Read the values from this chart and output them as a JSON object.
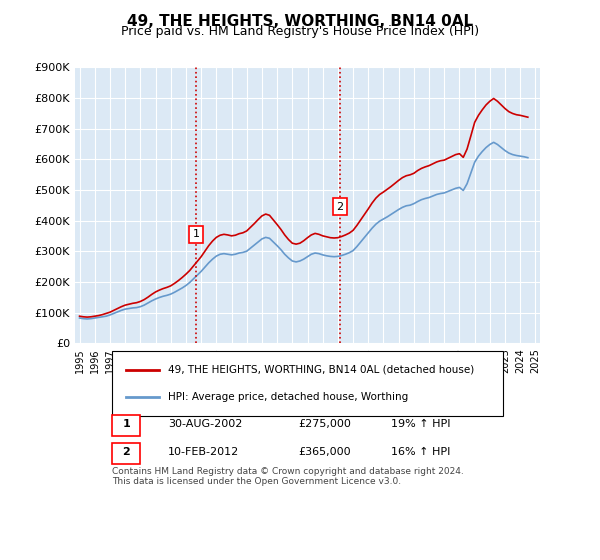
{
  "title": "49, THE HEIGHTS, WORTHING, BN14 0AL",
  "subtitle": "Price paid vs. HM Land Registry's House Price Index (HPI)",
  "bg_color": "#dce9f5",
  "plot_bg_color": "#dce9f5",
  "ylim": [
    0,
    900000
  ],
  "yticks": [
    0,
    100000,
    200000,
    300000,
    400000,
    500000,
    600000,
    700000,
    800000,
    900000
  ],
  "ytick_labels": [
    "£0",
    "£100K",
    "£200K",
    "£300K",
    "£400K",
    "£500K",
    "£600K",
    "£700K",
    "£800K",
    "£900K"
  ],
  "x_start_year": 1995,
  "x_end_year": 2025,
  "sale1_year": 2002.67,
  "sale1_price": 275000,
  "sale1_label": "1",
  "sale1_date": "30-AUG-2002",
  "sale1_pct": "19% ↑ HPI",
  "sale2_year": 2012.12,
  "sale2_price": 365000,
  "sale2_label": "2",
  "sale2_date": "10-FEB-2012",
  "sale2_pct": "16% ↑ HPI",
  "red_line_color": "#cc0000",
  "blue_line_color": "#6699cc",
  "vline_color": "#cc0000",
  "legend_label1": "49, THE HEIGHTS, WORTHING, BN14 0AL (detached house)",
  "legend_label2": "HPI: Average price, detached house, Worthing",
  "footer": "Contains HM Land Registry data © Crown copyright and database right 2024.\nThis data is licensed under the Open Government Licence v3.0.",
  "hpi_data_x": [
    1995.0,
    1995.25,
    1995.5,
    1995.75,
    1996.0,
    1996.25,
    1996.5,
    1996.75,
    1997.0,
    1997.25,
    1997.5,
    1997.75,
    1998.0,
    1998.25,
    1998.5,
    1998.75,
    1999.0,
    1999.25,
    1999.5,
    1999.75,
    2000.0,
    2000.25,
    2000.5,
    2000.75,
    2001.0,
    2001.25,
    2001.5,
    2001.75,
    2002.0,
    2002.25,
    2002.5,
    2002.75,
    2003.0,
    2003.25,
    2003.5,
    2003.75,
    2004.0,
    2004.25,
    2004.5,
    2004.75,
    2005.0,
    2005.25,
    2005.5,
    2005.75,
    2006.0,
    2006.25,
    2006.5,
    2006.75,
    2007.0,
    2007.25,
    2007.5,
    2007.75,
    2008.0,
    2008.25,
    2008.5,
    2008.75,
    2009.0,
    2009.25,
    2009.5,
    2009.75,
    2010.0,
    2010.25,
    2010.5,
    2010.75,
    2011.0,
    2011.25,
    2011.5,
    2011.75,
    2012.0,
    2012.25,
    2012.5,
    2012.75,
    2013.0,
    2013.25,
    2013.5,
    2013.75,
    2014.0,
    2014.25,
    2014.5,
    2014.75,
    2015.0,
    2015.25,
    2015.5,
    2015.75,
    2016.0,
    2016.25,
    2016.5,
    2016.75,
    2017.0,
    2017.25,
    2017.5,
    2017.75,
    2018.0,
    2018.25,
    2018.5,
    2018.75,
    2019.0,
    2019.25,
    2019.5,
    2019.75,
    2020.0,
    2020.25,
    2020.5,
    2020.75,
    2021.0,
    2021.25,
    2021.5,
    2021.75,
    2022.0,
    2022.25,
    2022.5,
    2022.75,
    2023.0,
    2023.25,
    2023.5,
    2023.75,
    2024.0,
    2024.25,
    2024.5
  ],
  "hpi_data_y": [
    82000,
    80000,
    79000,
    80000,
    82000,
    84000,
    86000,
    88000,
    92000,
    97000,
    102000,
    107000,
    111000,
    113000,
    115000,
    116000,
    119000,
    124000,
    131000,
    138000,
    144000,
    149000,
    153000,
    156000,
    160000,
    166000,
    173000,
    180000,
    188000,
    198000,
    210000,
    222000,
    234000,
    248000,
    262000,
    274000,
    284000,
    290000,
    292000,
    290000,
    288000,
    290000,
    294000,
    296000,
    300000,
    310000,
    320000,
    330000,
    340000,
    345000,
    342000,
    330000,
    318000,
    305000,
    290000,
    278000,
    268000,
    265000,
    268000,
    274000,
    282000,
    290000,
    294000,
    292000,
    288000,
    285000,
    283000,
    282000,
    283000,
    286000,
    290000,
    295000,
    302000,
    315000,
    330000,
    345000,
    360000,
    375000,
    388000,
    398000,
    405000,
    412000,
    420000,
    428000,
    436000,
    443000,
    448000,
    450000,
    455000,
    462000,
    468000,
    472000,
    475000,
    480000,
    485000,
    488000,
    490000,
    495000,
    500000,
    505000,
    508000,
    498000,
    520000,
    555000,
    590000,
    610000,
    625000,
    638000,
    648000,
    655000,
    648000,
    638000,
    628000,
    620000,
    615000,
    612000,
    610000,
    608000,
    605000
  ],
  "price_index_x": [
    1995.0,
    1995.25,
    1995.5,
    1995.75,
    1996.0,
    1996.25,
    1996.5,
    1996.75,
    1997.0,
    1997.25,
    1997.5,
    1997.75,
    1998.0,
    1998.25,
    1998.5,
    1998.75,
    1999.0,
    1999.25,
    1999.5,
    1999.75,
    2000.0,
    2000.25,
    2000.5,
    2000.75,
    2001.0,
    2001.25,
    2001.5,
    2001.75,
    2002.0,
    2002.25,
    2002.5,
    2002.75,
    2003.0,
    2003.25,
    2003.5,
    2003.75,
    2004.0,
    2004.25,
    2004.5,
    2004.75,
    2005.0,
    2005.25,
    2005.5,
    2005.75,
    2006.0,
    2006.25,
    2006.5,
    2006.75,
    2007.0,
    2007.25,
    2007.5,
    2007.75,
    2008.0,
    2008.25,
    2008.5,
    2008.75,
    2009.0,
    2009.25,
    2009.5,
    2009.75,
    2010.0,
    2010.25,
    2010.5,
    2010.75,
    2011.0,
    2011.25,
    2011.5,
    2011.75,
    2012.0,
    2012.25,
    2012.5,
    2012.75,
    2013.0,
    2013.25,
    2013.5,
    2013.75,
    2014.0,
    2014.25,
    2014.5,
    2014.75,
    2015.0,
    2015.25,
    2015.5,
    2015.75,
    2016.0,
    2016.25,
    2016.5,
    2016.75,
    2017.0,
    2017.25,
    2017.5,
    2017.75,
    2018.0,
    2018.25,
    2018.5,
    2018.75,
    2019.0,
    2019.25,
    2019.5,
    2019.75,
    2020.0,
    2020.25,
    2020.5,
    2020.75,
    2021.0,
    2021.25,
    2021.5,
    2021.75,
    2022.0,
    2022.25,
    2022.5,
    2022.75,
    2023.0,
    2023.25,
    2023.5,
    2023.75,
    2024.0,
    2024.25,
    2024.5
  ],
  "price_index_y": [
    88000,
    86000,
    85000,
    86000,
    88000,
    90000,
    93000,
    97000,
    101000,
    107000,
    113000,
    119000,
    124000,
    127000,
    130000,
    132000,
    136000,
    142000,
    150000,
    159000,
    167000,
    173000,
    178000,
    182000,
    187000,
    195000,
    204000,
    214000,
    225000,
    237000,
    252000,
    267000,
    282000,
    300000,
    318000,
    333000,
    345000,
    352000,
    355000,
    353000,
    350000,
    352000,
    357000,
    360000,
    366000,
    378000,
    390000,
    403000,
    415000,
    421000,
    417000,
    402000,
    387000,
    371000,
    353000,
    338000,
    326000,
    323000,
    326000,
    334000,
    344000,
    353000,
    358000,
    355000,
    350000,
    347000,
    344000,
    343000,
    344000,
    348000,
    353000,
    359000,
    368000,
    384000,
    402000,
    420000,
    438000,
    457000,
    473000,
    485000,
    493000,
    502000,
    511000,
    521000,
    531000,
    540000,
    546000,
    549000,
    554000,
    563000,
    570000,
    575000,
    579000,
    585000,
    591000,
    595000,
    597000,
    603000,
    609000,
    615000,
    618000,
    606000,
    633000,
    676000,
    720000,
    743000,
    761000,
    777000,
    789000,
    798000,
    789000,
    777000,
    765000,
    755000,
    749000,
    745000,
    743000,
    740000,
    737000
  ]
}
